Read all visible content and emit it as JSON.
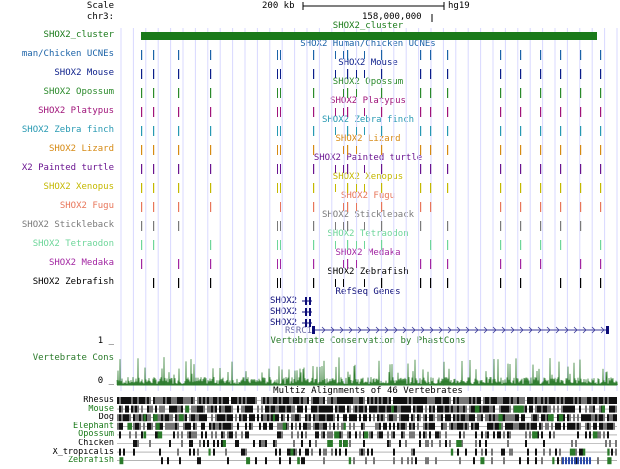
{
  "header": {
    "scale_label": "Scale",
    "chrom_label": "chr3:",
    "scale_bar_text": "200 kb",
    "assembly": "hg19",
    "coordinate": "158,000,000"
  },
  "colors": {
    "cluster": "#1a7a1a",
    "grid": "#d8d8ff",
    "refseq": "#0c0c78",
    "cons": "#2a7a2a",
    "multiz": "#000000"
  },
  "tracks": [
    {
      "label": "SHOX2_cluster",
      "center": "SHOX2_cluster",
      "color": "#1a7a1a"
    },
    {
      "label": "man/Chicken UCNEs",
      "center": "SHOX2 Human/Chicken UCNEs",
      "color": "#1c63a8"
    },
    {
      "label": "SHOX2 Mouse",
      "center": "SHOX2 Mouse",
      "color": "#0b1e8a"
    },
    {
      "label": "SHOX2 Opossum",
      "center": "SHOX2 Opossum",
      "color": "#2b8a2b"
    },
    {
      "label": "SHOX2 Platypus",
      "center": "SHOX2 Platypus",
      "color": "#a0147a"
    },
    {
      "label": "SHOX2 Zebra finch",
      "center": "SHOX2 Zebra finch",
      "color": "#2799b2"
    },
    {
      "label": "SHOX2 Lizard",
      "center": "SHOX2 Lizard",
      "color": "#d68a14"
    },
    {
      "label": "X2 Painted turtle",
      "center": "SHOX2 Painted turtle",
      "color": "#6a1490"
    },
    {
      "label": "SHOX2 Xenopus",
      "center": "SHOX2 Xenopus",
      "color": "#c4b800"
    },
    {
      "label": "SHOX2 Fugu",
      "center": "SHOX2 Fugu",
      "color": "#e8765a"
    },
    {
      "label": "SHOX2 Stickleback",
      "center": "SHOX2 Stickleback",
      "color": "#7a7a7a"
    },
    {
      "label": "SHOX2 Tetraodon",
      "center": "SHOX2 Tetraodon",
      "color": "#6ed69a"
    },
    {
      "label": "SHOX2 Medaka",
      "center": "SHOX2 Medaka",
      "color": "#a226a2"
    },
    {
      "label": "SHOX2 Zebrafish",
      "center": "SHOX2 Zebrafish",
      "color": "#000000"
    }
  ],
  "refseq": {
    "title": "RefSeq Genes",
    "genes": [
      "SHOX2",
      "SHOX2",
      "SHOX2"
    ],
    "long_gene": "RSRC1"
  },
  "conservation": {
    "title": "Vertebrate Conservation by PhastCons",
    "track_label": "Vertebrate Cons",
    "ymax": "1 _",
    "ymin": "0 _"
  },
  "multiz": {
    "title": "Multiz Alignments of 46 Vertebrates",
    "species": [
      "Rhesus",
      "Mouse",
      "Dog",
      "Elephant",
      "Opossum",
      "Chicken",
      "X_tropicalis",
      "Zebrafish"
    ],
    "colors": [
      "#000000",
      "#1a7a1a",
      "#000000",
      "#1a7a1a",
      "#1a7a1a",
      "#000000",
      "#000000",
      "#1a7a1a"
    ]
  }
}
